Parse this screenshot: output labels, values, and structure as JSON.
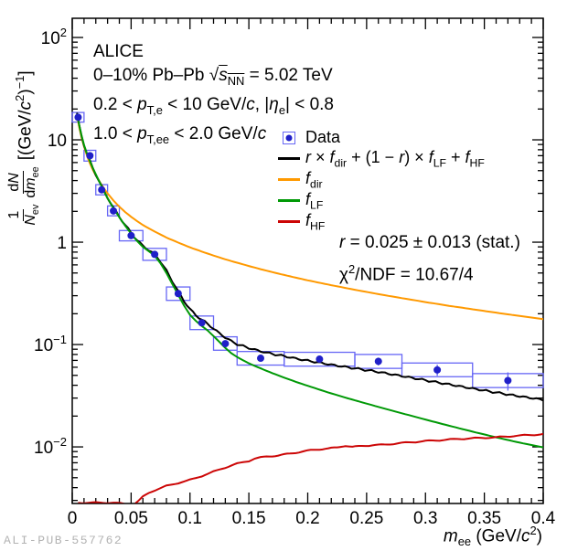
{
  "watermark": "ALI-PUB-557762",
  "info": {
    "lines": [
      "ALICE",
      "0–10% Pb–Pb √<span class=\"ov\"><i>s</i><sub>NN</sub></span> = 5.02 TeV",
      "0.2 < <i>p</i><sub>T,e</sub> < 10 GeV/<i>c</i>, |<i>η</i><sub>e</sub>| < 0.8",
      "1.0 < <i>p</i><sub>T,ee</sub> < 2.0 GeV/<i>c</i>"
    ]
  },
  "legend": {
    "entries": [
      {
        "kind": "data-marker",
        "label_html": "Data"
      },
      {
        "kind": "line",
        "color": "#000000",
        "label_html": "<i>r</i> × <i>f</i><sub>dir</sub> + (1 − <i>r</i>) × <i>f</i><sub>LF</sub> + <i>f</i><sub>HF</sub>"
      },
      {
        "kind": "line",
        "color": "#ff9900",
        "label_html": "<i>f</i><sub>dir</sub>"
      },
      {
        "kind": "line",
        "color": "#009906",
        "label_html": "<i>f</i><sub>LF</sub>"
      },
      {
        "kind": "line",
        "color": "#cc0606",
        "label_html": "<i>f</i><sub>HF</sub>"
      }
    ]
  },
  "stats": {
    "line1_html": "<i>r</i> = 0.025 ± 0.013 (stat.)",
    "line2_html": "χ<sup>2</sup>/NDF = 10.67/4"
  },
  "axes": {
    "x_title_html": "<i>m</i><sub>ee</sub> (GeV/<i>c</i><sup>2</sup>)",
    "y_title": {
      "frac1_num_html": "1",
      "frac1_den_html": "<i>N</i><sub>ev</sub>",
      "frac2_num_html": "d<i>N</i>",
      "frac2_den_html": "d<i>m</i><sub>ee</sub>",
      "units_html": "[(GeV/<i>c</i><sup>2</sup>)<sup>−1</sup>]"
    }
  },
  "chart_data": {
    "type": "line+scatter",
    "xlabel": "m_ee (GeV/c^2)",
    "ylabel": "1/N_ev dN/dm_ee [(GeV/c^2)^-1]",
    "xlim": [
      0,
      0.4
    ],
    "ylim": [
      0.0028,
      154
    ],
    "y_log": true,
    "grid": false,
    "x_ticks": [
      {
        "v": 0,
        "label": "0"
      },
      {
        "v": 0.05,
        "label": "0.05"
      },
      {
        "v": 0.1,
        "label": "0.1"
      },
      {
        "v": 0.15,
        "label": "0.15"
      },
      {
        "v": 0.2,
        "label": "0.2"
      },
      {
        "v": 0.25,
        "label": "0.25"
      },
      {
        "v": 0.3,
        "label": "0.3"
      },
      {
        "v": 0.35,
        "label": "0.35"
      },
      {
        "v": 0.4,
        "label": "0.4"
      }
    ],
    "y_ticks": [
      {
        "v": 100,
        "base": "10",
        "exp": "2"
      },
      {
        "v": 10,
        "base": "10",
        "exp": ""
      },
      {
        "v": 1,
        "base": "1",
        "exp": ""
      },
      {
        "v": 0.1,
        "base": "10",
        "exp": "−1"
      },
      {
        "v": 0.01,
        "base": "10",
        "exp": "−2"
      }
    ],
    "points_style": {
      "marker_color": "#2020c8",
      "box_color": "#6666f5",
      "marker_radius": 4
    },
    "points": [
      {
        "x": 0.005,
        "y": 16.6,
        "ey": 0.3,
        "box_x": [
          0.0,
          0.01
        ],
        "box_y": [
          14.9,
          18.5
        ]
      },
      {
        "x": 0.015,
        "y": 7.0,
        "ey": 0.15,
        "box_x": [
          0.01,
          0.02
        ],
        "box_y": [
          6.2,
          7.9
        ]
      },
      {
        "x": 0.025,
        "y": 3.25,
        "ey": 0.07,
        "box_x": [
          0.02,
          0.03
        ],
        "box_y": [
          2.9,
          3.65
        ]
      },
      {
        "x": 0.035,
        "y": 2.02,
        "ey": 0.05,
        "box_x": [
          0.03,
          0.04
        ],
        "box_y": [
          1.81,
          2.26
        ]
      },
      {
        "x": 0.05,
        "y": 1.16,
        "ey": 0.03,
        "box_x": [
          0.04,
          0.06
        ],
        "box_y": [
          1.03,
          1.3
        ]
      },
      {
        "x": 0.07,
        "y": 0.76,
        "ey": 0.025,
        "box_x": [
          0.06,
          0.08
        ],
        "box_y": [
          0.665,
          0.87
        ]
      },
      {
        "x": 0.09,
        "y": 0.315,
        "ey": 0.012,
        "box_x": [
          0.08,
          0.1
        ],
        "box_y": [
          0.27,
          0.365
        ]
      },
      {
        "x": 0.11,
        "y": 0.163,
        "ey": 0.008,
        "box_x": [
          0.1,
          0.12
        ],
        "box_y": [
          0.14,
          0.19
        ]
      },
      {
        "x": 0.13,
        "y": 0.102,
        "ey": 0.006,
        "box_x": [
          0.12,
          0.14
        ],
        "box_y": [
          0.088,
          0.119
        ]
      },
      {
        "x": 0.16,
        "y": 0.0735,
        "ey": 0.004,
        "box_x": [
          0.14,
          0.18
        ],
        "box_y": [
          0.063,
          0.0855
        ]
      },
      {
        "x": 0.21,
        "y": 0.072,
        "ey": 0.004,
        "box_x": [
          0.18,
          0.24
        ],
        "box_y": [
          0.0615,
          0.084
        ]
      },
      {
        "x": 0.26,
        "y": 0.0685,
        "ey": 0.006,
        "box_x": [
          0.24,
          0.28
        ],
        "box_y": [
          0.0585,
          0.08
        ]
      },
      {
        "x": 0.31,
        "y": 0.0565,
        "ey": 0.007,
        "box_x": [
          0.28,
          0.34
        ],
        "box_y": [
          0.0485,
          0.066
        ]
      },
      {
        "x": 0.37,
        "y": 0.0445,
        "ey": 0.009,
        "box_x": [
          0.34,
          0.4
        ],
        "box_y": [
          0.038,
          0.052
        ]
      }
    ],
    "series": [
      {
        "key": "fdir",
        "name": "f_dir",
        "color": "#ff9900",
        "width": 2,
        "points": [
          [
            0.004,
            17.5
          ],
          [
            0.006,
            13.2
          ],
          [
            0.008,
            10.4
          ],
          [
            0.01,
            8.6
          ],
          [
            0.0125,
            7.0
          ],
          [
            0.015,
            5.9
          ],
          [
            0.0175,
            5.1
          ],
          [
            0.02,
            4.5
          ],
          [
            0.025,
            3.6
          ],
          [
            0.03,
            3.0
          ],
          [
            0.035,
            2.55
          ],
          [
            0.04,
            2.22
          ],
          [
            0.045,
            1.97
          ],
          [
            0.05,
            1.77
          ],
          [
            0.055,
            1.61
          ],
          [
            0.06,
            1.47
          ],
          [
            0.07,
            1.27
          ],
          [
            0.08,
            1.11
          ],
          [
            0.09,
            0.99
          ],
          [
            0.1,
            0.89
          ],
          [
            0.11,
            0.81
          ],
          [
            0.12,
            0.74
          ],
          [
            0.13,
            0.68
          ],
          [
            0.14,
            0.63
          ],
          [
            0.15,
            0.585
          ],
          [
            0.16,
            0.545
          ],
          [
            0.17,
            0.51
          ],
          [
            0.18,
            0.478
          ],
          [
            0.19,
            0.45
          ],
          [
            0.2,
            0.424
          ],
          [
            0.22,
            0.38
          ],
          [
            0.24,
            0.343
          ],
          [
            0.26,
            0.311
          ],
          [
            0.28,
            0.284
          ],
          [
            0.3,
            0.26
          ],
          [
            0.32,
            0.239
          ],
          [
            0.34,
            0.221
          ],
          [
            0.36,
            0.205
          ],
          [
            0.38,
            0.19
          ],
          [
            0.4,
            0.177
          ]
        ]
      },
      {
        "key": "total",
        "name": "r x f_dir + (1-r) x f_LF + f_HF",
        "color": "#000000",
        "width": 2,
        "wiggle_amp": 1.1,
        "wiggle_len": 14,
        "points": [
          [
            0.004,
            18.0
          ],
          [
            0.006,
            13.8
          ],
          [
            0.008,
            10.9
          ],
          [
            0.01,
            8.9
          ],
          [
            0.0125,
            7.3
          ],
          [
            0.015,
            6.2
          ],
          [
            0.0175,
            5.3
          ],
          [
            0.02,
            4.6
          ],
          [
            0.0225,
            4.0
          ],
          [
            0.025,
            3.5
          ],
          [
            0.0275,
            3.06
          ],
          [
            0.03,
            2.72
          ],
          [
            0.035,
            2.17
          ],
          [
            0.04,
            1.77
          ],
          [
            0.045,
            1.47
          ],
          [
            0.05,
            1.23
          ],
          [
            0.055,
            1.05
          ],
          [
            0.06,
            0.92
          ],
          [
            0.065,
            0.835
          ],
          [
            0.07,
            0.765
          ],
          [
            0.075,
            0.645
          ],
          [
            0.08,
            0.525
          ],
          [
            0.085,
            0.415
          ],
          [
            0.09,
            0.33
          ],
          [
            0.095,
            0.265
          ],
          [
            0.1,
            0.222
          ],
          [
            0.105,
            0.193
          ],
          [
            0.11,
            0.175
          ],
          [
            0.115,
            0.159
          ],
          [
            0.12,
            0.143
          ],
          [
            0.125,
            0.129
          ],
          [
            0.13,
            0.117
          ],
          [
            0.135,
            0.108
          ],
          [
            0.14,
            0.101
          ],
          [
            0.15,
            0.0925
          ],
          [
            0.16,
            0.086
          ],
          [
            0.17,
            0.081
          ],
          [
            0.18,
            0.077
          ],
          [
            0.19,
            0.073
          ],
          [
            0.2,
            0.0695
          ],
          [
            0.22,
            0.0635
          ],
          [
            0.24,
            0.0585
          ],
          [
            0.26,
            0.054
          ],
          [
            0.28,
            0.0492
          ],
          [
            0.3,
            0.0448
          ],
          [
            0.32,
            0.0408
          ],
          [
            0.34,
            0.0372
          ],
          [
            0.36,
            0.034
          ],
          [
            0.38,
            0.0312
          ],
          [
            0.4,
            0.0288
          ]
        ]
      },
      {
        "key": "flf",
        "name": "f_LF",
        "color": "#009906",
        "width": 2,
        "points": [
          [
            0.004,
            18.0
          ],
          [
            0.006,
            13.8
          ],
          [
            0.008,
            10.9
          ],
          [
            0.01,
            8.9
          ],
          [
            0.0125,
            7.3
          ],
          [
            0.015,
            6.2
          ],
          [
            0.0175,
            5.3
          ],
          [
            0.02,
            4.6
          ],
          [
            0.0225,
            4.0
          ],
          [
            0.025,
            3.5
          ],
          [
            0.0275,
            3.05
          ],
          [
            0.03,
            2.7
          ],
          [
            0.035,
            2.15
          ],
          [
            0.04,
            1.75
          ],
          [
            0.045,
            1.45
          ],
          [
            0.05,
            1.21
          ],
          [
            0.055,
            1.03
          ],
          [
            0.06,
            0.9
          ],
          [
            0.065,
            0.815
          ],
          [
            0.07,
            0.74
          ],
          [
            0.075,
            0.62
          ],
          [
            0.08,
            0.5
          ],
          [
            0.085,
            0.39
          ],
          [
            0.09,
            0.305
          ],
          [
            0.095,
            0.24
          ],
          [
            0.1,
            0.195
          ],
          [
            0.105,
            0.17
          ],
          [
            0.11,
            0.152
          ],
          [
            0.115,
            0.137
          ],
          [
            0.12,
            0.121
          ],
          [
            0.125,
            0.106
          ],
          [
            0.13,
            0.0925
          ],
          [
            0.135,
            0.0825
          ],
          [
            0.14,
            0.0755
          ],
          [
            0.15,
            0.0655
          ],
          [
            0.16,
            0.0585
          ],
          [
            0.17,
            0.0525
          ],
          [
            0.18,
            0.0475
          ],
          [
            0.19,
            0.0432
          ],
          [
            0.2,
            0.0395
          ],
          [
            0.22,
            0.0333
          ],
          [
            0.24,
            0.0285
          ],
          [
            0.26,
            0.0246
          ],
          [
            0.28,
            0.0213
          ],
          [
            0.3,
            0.0185
          ],
          [
            0.32,
            0.0161
          ],
          [
            0.34,
            0.0141
          ],
          [
            0.36,
            0.0124
          ],
          [
            0.38,
            0.011
          ],
          [
            0.4,
            0.0099
          ]
        ]
      },
      {
        "key": "fhf",
        "name": "f_HF",
        "color": "#cc0606",
        "width": 2,
        "wiggle_amp": 0.7,
        "wiggle_len": 26,
        "points": [
          [
            0.005,
            0.00285
          ],
          [
            0.02,
            0.00285
          ],
          [
            0.035,
            0.00285
          ],
          [
            0.044,
            0.00278
          ],
          [
            0.048,
            0.00262
          ],
          [
            0.052,
            0.00272
          ],
          [
            0.056,
            0.00295
          ],
          [
            0.06,
            0.00325
          ],
          [
            0.065,
            0.00355
          ],
          [
            0.07,
            0.00378
          ],
          [
            0.08,
            0.00415
          ],
          [
            0.09,
            0.00445
          ],
          [
            0.1,
            0.00475
          ],
          [
            0.11,
            0.0052
          ],
          [
            0.12,
            0.00572
          ],
          [
            0.13,
            0.0063
          ],
          [
            0.14,
            0.00685
          ],
          [
            0.15,
            0.0073
          ],
          [
            0.155,
            0.0077
          ],
          [
            0.165,
            0.00805
          ],
          [
            0.175,
            0.00825
          ],
          [
            0.185,
            0.0086
          ],
          [
            0.195,
            0.009
          ],
          [
            0.205,
            0.00935
          ],
          [
            0.215,
            0.0096
          ],
          [
            0.225,
            0.00985
          ],
          [
            0.232,
            0.0103
          ],
          [
            0.238,
            0.01
          ],
          [
            0.246,
            0.0102
          ],
          [
            0.255,
            0.0104
          ],
          [
            0.265,
            0.0105
          ],
          [
            0.275,
            0.0108
          ],
          [
            0.3,
            0.0114
          ],
          [
            0.315,
            0.0117
          ],
          [
            0.33,
            0.012
          ],
          [
            0.345,
            0.0122
          ],
          [
            0.36,
            0.0124
          ],
          [
            0.375,
            0.0128
          ],
          [
            0.39,
            0.0131
          ],
          [
            0.4,
            0.0133
          ]
        ]
      }
    ]
  }
}
